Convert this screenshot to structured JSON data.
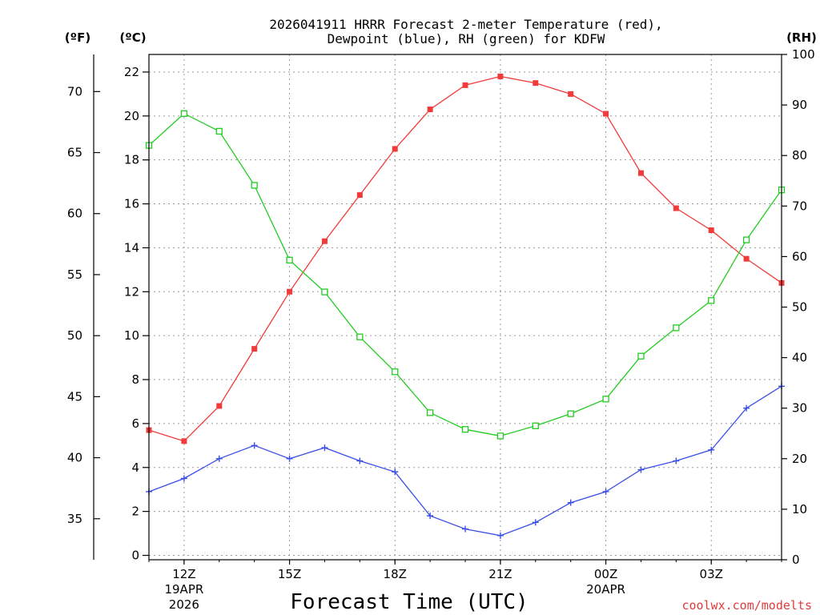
{
  "chart_data": {
    "type": "line",
    "title_line1": "2026041911 HRRR Forecast 2-meter Temperature (red),",
    "title_line2": "Dewpoint (blue), RH (green) for KDFW",
    "xlabel": "Forecast Time (UTC)",
    "credit": "coolwx.com/modelts",
    "units": {
      "fahrenheit": "(ºF)",
      "celsius": "(ºC)",
      "rh": "(RH)"
    },
    "hours": [
      11,
      12,
      13,
      14,
      15,
      16,
      17,
      18,
      19,
      20,
      21,
      22,
      23,
      24,
      25,
      26,
      27,
      28,
      29
    ],
    "xlim": [
      11,
      29
    ],
    "x_ticks": [
      {
        "hour": 12,
        "label": "12Z",
        "sub1": "19APR",
        "sub2": "2026"
      },
      {
        "hour": 15,
        "label": "15Z",
        "sub1": "",
        "sub2": ""
      },
      {
        "hour": 18,
        "label": "18Z",
        "sub1": "",
        "sub2": ""
      },
      {
        "hour": 21,
        "label": "21Z",
        "sub1": "",
        "sub2": ""
      },
      {
        "hour": 24,
        "label": "00Z",
        "sub1": "20APR",
        "sub2": ""
      },
      {
        "hour": 27,
        "label": "03Z",
        "sub1": "",
        "sub2": ""
      }
    ],
    "celsius_axis": {
      "min": -0.2,
      "max": 22.8,
      "ticks": [
        0,
        2,
        4,
        6,
        8,
        10,
        12,
        14,
        16,
        18,
        20,
        22
      ]
    },
    "fahrenheit_axis": {
      "ticks": [
        35,
        40,
        45,
        50,
        55,
        60,
        65,
        70
      ]
    },
    "rh_axis": {
      "min": 0,
      "max": 100,
      "ticks": [
        0,
        10,
        20,
        30,
        40,
        50,
        60,
        70,
        80,
        90,
        100
      ]
    },
    "series": [
      {
        "name": "2-meter Temperature",
        "color": "#f23a3a",
        "axis": "celsius",
        "marker": "filled-square",
        "values": [
          5.7,
          5.2,
          6.8,
          9.4,
          12.0,
          14.3,
          16.4,
          18.5,
          20.3,
          21.4,
          21.8,
          21.5,
          21.0,
          20.1,
          17.4,
          15.8,
          14.8,
          13.5,
          12.4
        ]
      },
      {
        "name": "Dewpoint",
        "color": "#3a4fe6",
        "axis": "celsius",
        "marker": "plus",
        "values": [
          2.9,
          3.5,
          4.4,
          5.0,
          4.4,
          4.9,
          4.3,
          3.8,
          1.8,
          1.2,
          0.9,
          1.5,
          2.4,
          2.9,
          3.9,
          4.3,
          4.8,
          6.7,
          7.7
        ]
      },
      {
        "name": "Relative Humidity",
        "color": "#22cc22",
        "axis": "rh",
        "marker": "open-square",
        "values": [
          82.0,
          88.3,
          84.8,
          74.1,
          59.3,
          53.0,
          44.1,
          37.2,
          29.1,
          25.8,
          24.5,
          26.5,
          28.9,
          31.8,
          40.3,
          45.9,
          51.3,
          63.3,
          73.2
        ]
      }
    ]
  }
}
